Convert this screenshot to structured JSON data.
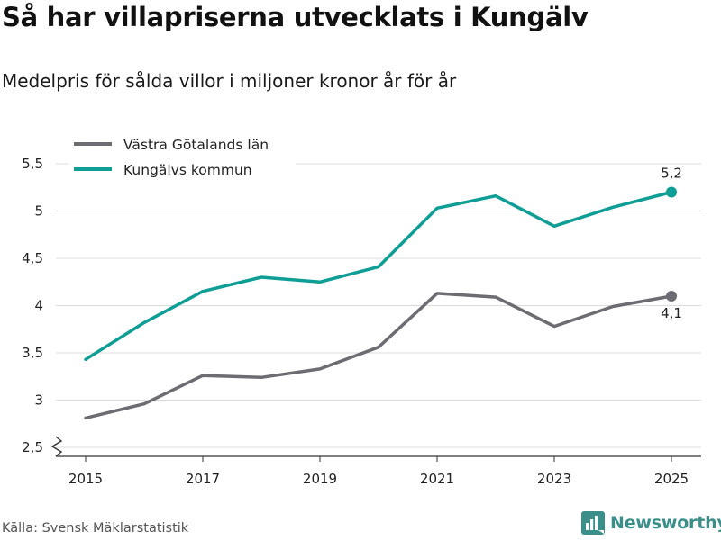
{
  "header": {
    "title": "Så har villapriserna utvecklats i Kungälv",
    "subtitle": "Medelpris för sålda villor i miljoner kronor år för år"
  },
  "footer": {
    "source": "Källa: Svensk Mäklarstatistik",
    "brand": "Newsworthy",
    "brand_icon": "bar-chart-logo-icon",
    "brand_color": "#3a8f8a"
  },
  "chart_data": {
    "type": "line",
    "title": "Så har villapriserna utvecklats i Kungälv",
    "subtitle": "Medelpris för sålda villor i miljoner kronor år för år",
    "xlabel": "",
    "ylabel": "",
    "x": [
      2015,
      2016,
      2017,
      2018,
      2019,
      2020,
      2021,
      2022,
      2023,
      2024,
      2025
    ],
    "xticks": [
      2015,
      2017,
      2019,
      2021,
      2023,
      2025
    ],
    "xlim": [
      2015,
      2025
    ],
    "ylim": [
      2.5,
      5.5
    ],
    "yticks": [
      2.5,
      3,
      3.5,
      4,
      4.5,
      5,
      5.5
    ],
    "ytick_labels": [
      "2,5",
      "3",
      "3,5",
      "4",
      "4,5",
      "5",
      "5,5"
    ],
    "y_axis_break": true,
    "grid": true,
    "legend_position": "top-left",
    "series": [
      {
        "name": "Västra Götalands län",
        "color": "#6d6c72",
        "values": [
          2.81,
          2.96,
          3.26,
          3.24,
          3.33,
          3.56,
          4.13,
          4.09,
          3.78,
          3.99,
          4.1
        ],
        "end_label": "4,1",
        "end_label_position": "below"
      },
      {
        "name": "Kungälvs kommun",
        "color": "#0f9e96",
        "values": [
          3.43,
          3.82,
          4.15,
          4.3,
          4.25,
          4.41,
          5.03,
          5.16,
          4.84,
          5.04,
          5.2
        ],
        "end_label": "5,2",
        "end_label_position": "above"
      }
    ]
  }
}
